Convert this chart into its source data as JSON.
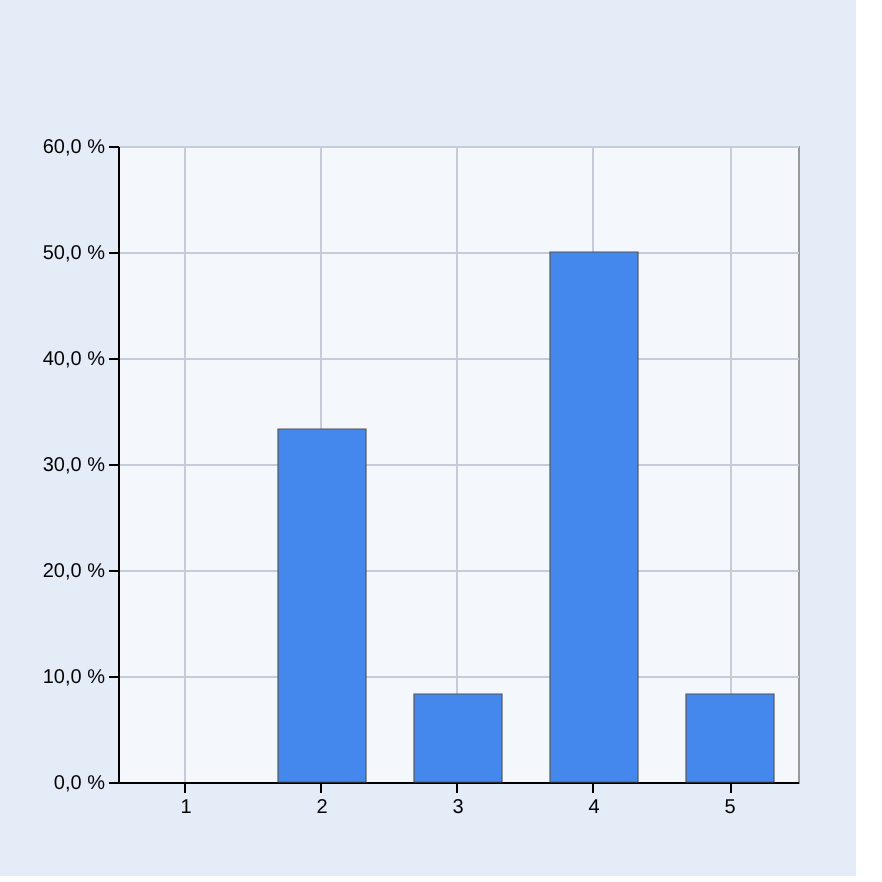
{
  "chart_data": {
    "type": "bar",
    "categories": [
      "1",
      "2",
      "3",
      "4",
      "5"
    ],
    "values": [
      0,
      33.3,
      8.3,
      50,
      8.3
    ],
    "color": "#4488ee",
    "ylim": [
      0,
      60
    ],
    "yticks": [
      {
        "value": 0,
        "label": "0,0 %"
      },
      {
        "value": 10,
        "label": "10,0 %"
      },
      {
        "value": 20,
        "label": "20,0 %"
      },
      {
        "value": 30,
        "label": "30,0 %"
      },
      {
        "value": 40,
        "label": "40,0 %"
      },
      {
        "value": 50,
        "label": "50,0 %"
      },
      {
        "value": 60,
        "label": "60,0 %"
      }
    ],
    "grid": true
  }
}
